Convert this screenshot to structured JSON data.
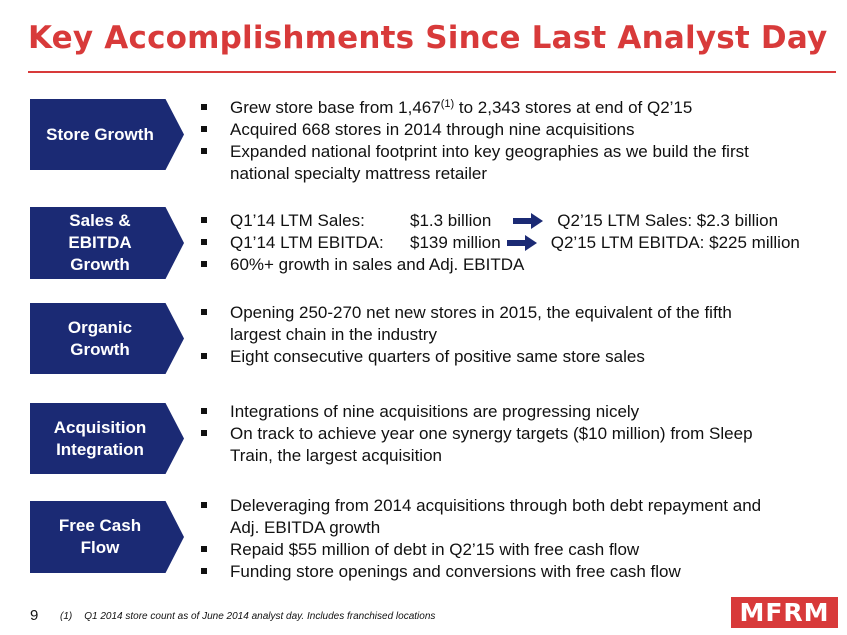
{
  "title": "Key Accomplishments Since Last Analyst Day",
  "colors": {
    "title": "#d83a3a",
    "tag_bg": "#1b2a74",
    "arrow": "#1b2a74",
    "logo_bg": "#d83a3a"
  },
  "sections": [
    {
      "tag_lines": [
        "Store Growth"
      ],
      "bullets": [
        {
          "pre": "Grew store base from 1,467",
          "sup": "(1)",
          "post": " to 2,343 stores at end of Q2’15"
        },
        {
          "text": "Acquired 668 stores in 2014 through nine acquisitions"
        },
        {
          "text": "Expanded national footprint into key geographies as we build the first",
          "cont": "national specialty mattress retailer"
        }
      ]
    },
    {
      "tag_lines": [
        "Sales &",
        "EBITDA",
        "Growth"
      ],
      "comparisons": [
        {
          "left_label": "Q1’14 LTM Sales:",
          "left_value": "$1.3 billion",
          "right": "Q2’15 LTM Sales: $2.3 billion"
        },
        {
          "left_label": "Q1’14 LTM EBITDA:",
          "left_value": "$139 million",
          "right": "Q2’15 LTM EBITDA: $225 million"
        }
      ],
      "bullets": [
        {
          "text": "60%+ growth in sales and Adj. EBITDA"
        }
      ]
    },
    {
      "tag_lines": [
        "Organic",
        "Growth"
      ],
      "bullets": [
        {
          "text": "Opening 250-270 net new stores in 2015, the equivalent of the fifth",
          "cont": "largest chain in the industry"
        },
        {
          "text": "Eight consecutive quarters of positive same store sales"
        }
      ]
    },
    {
      "tag_lines": [
        "Acquisition",
        "Integration"
      ],
      "bullets": [
        {
          "text": "Integrations of nine acquisitions are progressing nicely"
        },
        {
          "text": "On track to achieve year one synergy targets ($10 million) from Sleep",
          "cont": "Train, the largest acquisition"
        }
      ]
    },
    {
      "tag_lines": [
        "Free Cash",
        "Flow"
      ],
      "bullets": [
        {
          "text": "Deleveraging from 2014 acquisitions through both debt repayment and",
          "cont": "Adj. EBITDA growth"
        },
        {
          "text": "Repaid $55 million of debt in Q2’15 with free cash flow"
        },
        {
          "text": "Funding store openings and conversions with free cash flow"
        }
      ]
    }
  ],
  "footer": {
    "page_number": "9",
    "footnote_marker": "(1)",
    "footnote_text": "Q1 2014 store count as of June 2014 analyst day. Includes franchised locations",
    "logo_text": "MFRM"
  }
}
